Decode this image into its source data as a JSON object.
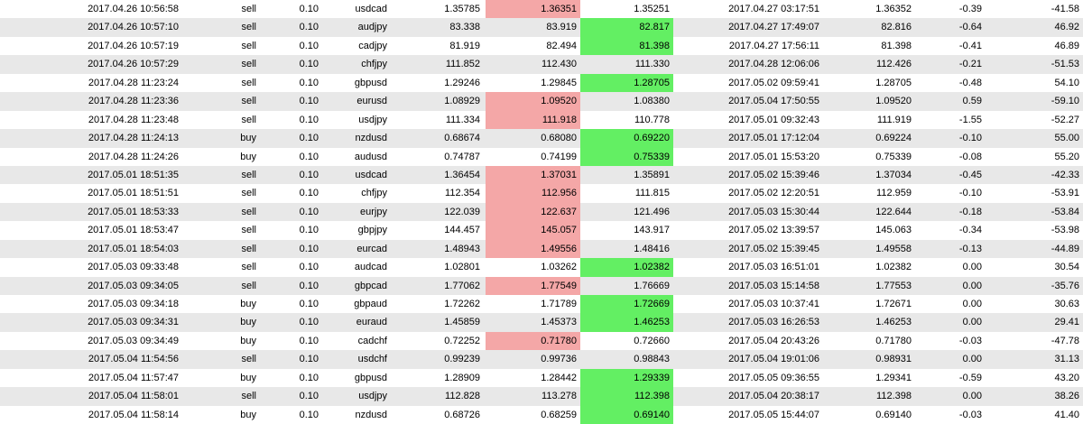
{
  "colors": {
    "row_alt": "#e8e8e8",
    "row_plain": "#ffffff",
    "stop_loss_hit": "#f4a7a7",
    "take_profit_hit": "#63ef63"
  },
  "trades": [
    {
      "open_time": "2017.04.26 10:56:58",
      "type": "sell",
      "size": "0.10",
      "symbol": "usdcad",
      "price": "1.35785",
      "sl": "1.36351",
      "tp": "1.35251",
      "close_time": "2017.04.27 03:17:51",
      "close_price": "1.36352",
      "commission": "-0.39",
      "profit": "-41.58",
      "hit": "sl"
    },
    {
      "open_time": "2017.04.26 10:57:10",
      "type": "sell",
      "size": "0.10",
      "symbol": "audjpy",
      "price": "83.338",
      "sl": "83.919",
      "tp": "82.817",
      "close_time": "2017.04.27 17:49:07",
      "close_price": "82.816",
      "commission": "-0.64",
      "profit": "46.92",
      "hit": "tp"
    },
    {
      "open_time": "2017.04.26 10:57:19",
      "type": "sell",
      "size": "0.10",
      "symbol": "cadjpy",
      "price": "81.919",
      "sl": "82.494",
      "tp": "81.398",
      "close_time": "2017.04.27 17:56:11",
      "close_price": "81.398",
      "commission": "-0.41",
      "profit": "46.89",
      "hit": "tp"
    },
    {
      "open_time": "2017.04.26 10:57:29",
      "type": "sell",
      "size": "0.10",
      "symbol": "chfjpy",
      "price": "111.852",
      "sl": "112.430",
      "tp": "111.330",
      "close_time": "2017.04.28 12:06:06",
      "close_price": "112.426",
      "commission": "-0.21",
      "profit": "-51.53",
      "hit": "none"
    },
    {
      "open_time": "2017.04.28 11:23:24",
      "type": "sell",
      "size": "0.10",
      "symbol": "gbpusd",
      "price": "1.29246",
      "sl": "1.29845",
      "tp": "1.28705",
      "close_time": "2017.05.02 09:59:41",
      "close_price": "1.28705",
      "commission": "-0.48",
      "profit": "54.10",
      "hit": "tp"
    },
    {
      "open_time": "2017.04.28 11:23:36",
      "type": "sell",
      "size": "0.10",
      "symbol": "eurusd",
      "price": "1.08929",
      "sl": "1.09520",
      "tp": "1.08380",
      "close_time": "2017.05.04 17:50:55",
      "close_price": "1.09520",
      "commission": "0.59",
      "profit": "-59.10",
      "hit": "sl"
    },
    {
      "open_time": "2017.04.28 11:23:48",
      "type": "sell",
      "size": "0.10",
      "symbol": "usdjpy",
      "price": "111.334",
      "sl": "111.918",
      "tp": "110.778",
      "close_time": "2017.05.01 09:32:43",
      "close_price": "111.919",
      "commission": "-1.55",
      "profit": "-52.27",
      "hit": "sl"
    },
    {
      "open_time": "2017.04.28 11:24:13",
      "type": "buy",
      "size": "0.10",
      "symbol": "nzdusd",
      "price": "0.68674",
      "sl": "0.68080",
      "tp": "0.69220",
      "close_time": "2017.05.01 17:12:04",
      "close_price": "0.69224",
      "commission": "-0.10",
      "profit": "55.00",
      "hit": "tp"
    },
    {
      "open_time": "2017.04.28 11:24:26",
      "type": "buy",
      "size": "0.10",
      "symbol": "audusd",
      "price": "0.74787",
      "sl": "0.74199",
      "tp": "0.75339",
      "close_time": "2017.05.01 15:53:20",
      "close_price": "0.75339",
      "commission": "-0.08",
      "profit": "55.20",
      "hit": "tp"
    },
    {
      "open_time": "2017.05.01 18:51:35",
      "type": "sell",
      "size": "0.10",
      "symbol": "usdcad",
      "price": "1.36454",
      "sl": "1.37031",
      "tp": "1.35891",
      "close_time": "2017.05.02 15:39:46",
      "close_price": "1.37034",
      "commission": "-0.45",
      "profit": "-42.33",
      "hit": "sl"
    },
    {
      "open_time": "2017.05.01 18:51:51",
      "type": "sell",
      "size": "0.10",
      "symbol": "chfjpy",
      "price": "112.354",
      "sl": "112.956",
      "tp": "111.815",
      "close_time": "2017.05.02 12:20:51",
      "close_price": "112.959",
      "commission": "-0.10",
      "profit": "-53.91",
      "hit": "sl"
    },
    {
      "open_time": "2017.05.01 18:53:33",
      "type": "sell",
      "size": "0.10",
      "symbol": "eurjpy",
      "price": "122.039",
      "sl": "122.637",
      "tp": "121.496",
      "close_time": "2017.05.03 15:30:44",
      "close_price": "122.644",
      "commission": "-0.18",
      "profit": "-53.84",
      "hit": "sl"
    },
    {
      "open_time": "2017.05.01 18:53:47",
      "type": "sell",
      "size": "0.10",
      "symbol": "gbpjpy",
      "price": "144.457",
      "sl": "145.057",
      "tp": "143.917",
      "close_time": "2017.05.02 13:39:57",
      "close_price": "145.063",
      "commission": "-0.34",
      "profit": "-53.98",
      "hit": "sl"
    },
    {
      "open_time": "2017.05.01 18:54:03",
      "type": "sell",
      "size": "0.10",
      "symbol": "eurcad",
      "price": "1.48943",
      "sl": "1.49556",
      "tp": "1.48416",
      "close_time": "2017.05.02 15:39:45",
      "close_price": "1.49558",
      "commission": "-0.13",
      "profit": "-44.89",
      "hit": "sl"
    },
    {
      "open_time": "2017.05.03 09:33:48",
      "type": "sell",
      "size": "0.10",
      "symbol": "audcad",
      "price": "1.02801",
      "sl": "1.03262",
      "tp": "1.02382",
      "close_time": "2017.05.03 16:51:01",
      "close_price": "1.02382",
      "commission": "0.00",
      "profit": "30.54",
      "hit": "tp"
    },
    {
      "open_time": "2017.05.03 09:34:05",
      "type": "sell",
      "size": "0.10",
      "symbol": "gbpcad",
      "price": "1.77062",
      "sl": "1.77549",
      "tp": "1.76669",
      "close_time": "2017.05.03 15:14:58",
      "close_price": "1.77553",
      "commission": "0.00",
      "profit": "-35.76",
      "hit": "sl"
    },
    {
      "open_time": "2017.05.03 09:34:18",
      "type": "buy",
      "size": "0.10",
      "symbol": "gbpaud",
      "price": "1.72262",
      "sl": "1.71789",
      "tp": "1.72669",
      "close_time": "2017.05.03 10:37:41",
      "close_price": "1.72671",
      "commission": "0.00",
      "profit": "30.63",
      "hit": "tp"
    },
    {
      "open_time": "2017.05.03 09:34:31",
      "type": "buy",
      "size": "0.10",
      "symbol": "euraud",
      "price": "1.45859",
      "sl": "1.45373",
      "tp": "1.46253",
      "close_time": "2017.05.03 16:26:53",
      "close_price": "1.46253",
      "commission": "0.00",
      "profit": "29.41",
      "hit": "tp"
    },
    {
      "open_time": "2017.05.03 09:34:49",
      "type": "buy",
      "size": "0.10",
      "symbol": "cadchf",
      "price": "0.72252",
      "sl": "0.71780",
      "tp": "0.72660",
      "close_time": "2017.05.04 20:43:26",
      "close_price": "0.71780",
      "commission": "-0.03",
      "profit": "-47.78",
      "hit": "sl"
    },
    {
      "open_time": "2017.05.04 11:54:56",
      "type": "sell",
      "size": "0.10",
      "symbol": "usdchf",
      "price": "0.99239",
      "sl": "0.99736",
      "tp": "0.98843",
      "close_time": "2017.05.04 19:01:06",
      "close_price": "0.98931",
      "commission": "0.00",
      "profit": "31.13",
      "hit": "none"
    },
    {
      "open_time": "2017.05.04 11:57:47",
      "type": "buy",
      "size": "0.10",
      "symbol": "gbpusd",
      "price": "1.28909",
      "sl": "1.28442",
      "tp": "1.29339",
      "close_time": "2017.05.05 09:36:55",
      "close_price": "1.29341",
      "commission": "-0.59",
      "profit": "43.20",
      "hit": "tp"
    },
    {
      "open_time": "2017.05.04 11:58:01",
      "type": "sell",
      "size": "0.10",
      "symbol": "usdjpy",
      "price": "112.828",
      "sl": "113.278",
      "tp": "112.398",
      "close_time": "2017.05.04 20:38:17",
      "close_price": "112.398",
      "commission": "0.00",
      "profit": "38.26",
      "hit": "tp"
    },
    {
      "open_time": "2017.05.04 11:58:14",
      "type": "buy",
      "size": "0.10",
      "symbol": "nzdusd",
      "price": "0.68726",
      "sl": "0.68259",
      "tp": "0.69140",
      "close_time": "2017.05.05 15:44:07",
      "close_price": "0.69140",
      "commission": "-0.03",
      "profit": "41.40",
      "hit": "tp"
    }
  ]
}
